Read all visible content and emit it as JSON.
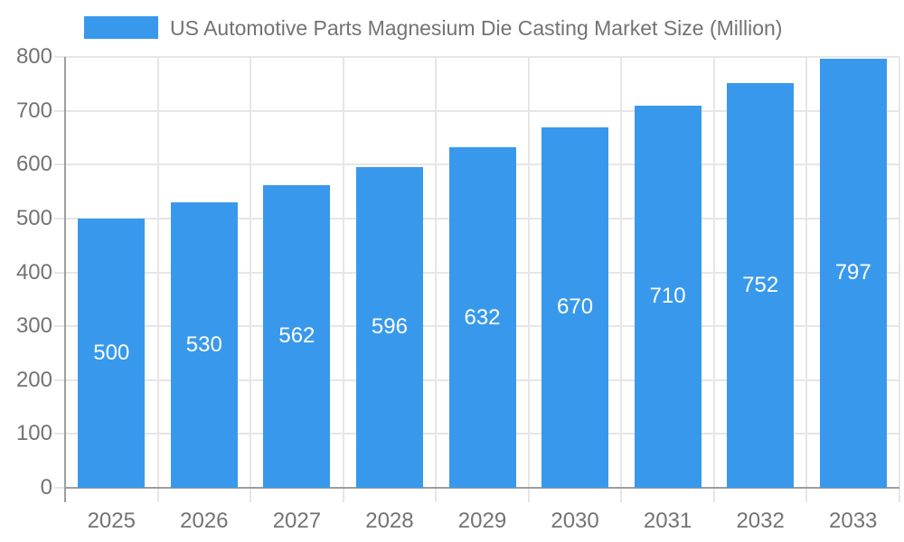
{
  "chart_data": {
    "type": "bar",
    "title": "US Automotive Parts Magnesium Die Casting Market Size (Million)",
    "series_name": "US Automotive Parts Magnesium Die Casting Market Size (Million)",
    "categories": [
      "2025",
      "2026",
      "2027",
      "2028",
      "2029",
      "2030",
      "2031",
      "2032",
      "2033"
    ],
    "values": [
      500,
      530,
      562,
      596,
      632,
      670,
      710,
      752,
      797
    ],
    "xlabel": "",
    "ylabel": "",
    "ylim": [
      0,
      800
    ],
    "yticks": [
      0,
      100,
      200,
      300,
      400,
      500,
      600,
      700,
      800
    ],
    "grid": true,
    "legend_position": "top-left",
    "value_labels": "inside-center",
    "colors": {
      "bar": "#3899EC",
      "value_label": "#FFFFFF",
      "axis_text": "#737373",
      "gridline": "#E6E6E6",
      "axis_line": "#9E9E9E",
      "background": "#FFFFFF"
    }
  }
}
